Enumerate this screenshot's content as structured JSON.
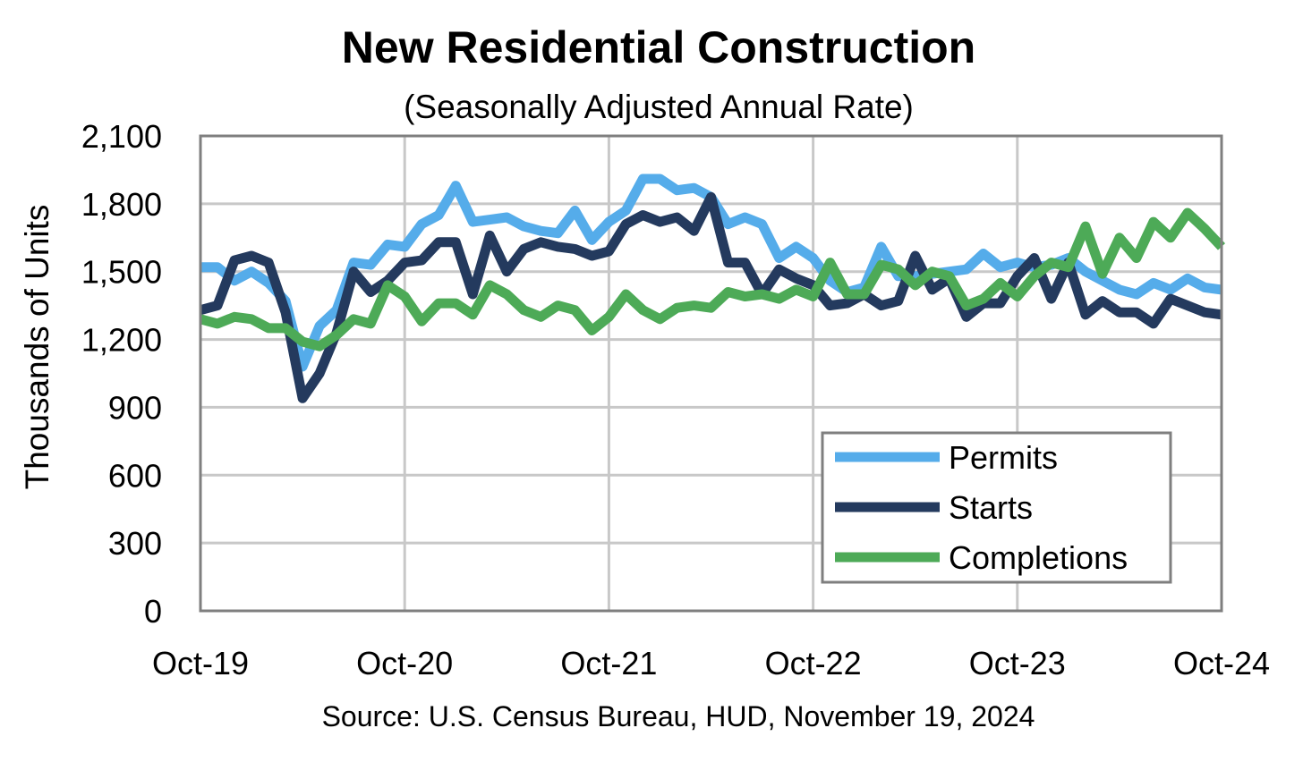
{
  "chart_data": {
    "type": "line",
    "title": "New Residential Construction",
    "subtitle": "(Seasonally Adjusted Annual Rate)",
    "ylabel": "Thousands of Units",
    "source": "Source:  U.S. Census Bureau, HUD, November 19, 2024",
    "ylim": [
      0,
      2100
    ],
    "y_ticks": [
      0,
      300,
      600,
      900,
      1200,
      1500,
      1800,
      2100
    ],
    "y_tick_labels": [
      "0",
      "300",
      "600",
      "900",
      "1,200",
      "1,500",
      "1,800",
      "2,100"
    ],
    "x_tick_labels": [
      "Oct-19",
      "Oct-20",
      "Oct-21",
      "Oct-22",
      "Oct-23",
      "Oct-24"
    ],
    "x_tick_months": [
      0,
      12,
      24,
      36,
      48,
      60
    ],
    "x_months": 60,
    "grid": true,
    "legend_position": "bottom-right",
    "series": [
      {
        "name": "Permits",
        "color": "#55acea",
        "values": [
          1520,
          1520,
          1460,
          1500,
          1450,
          1370,
          1080,
          1260,
          1330,
          1540,
          1530,
          1620,
          1610,
          1710,
          1750,
          1880,
          1720,
          1730,
          1740,
          1700,
          1680,
          1670,
          1770,
          1640,
          1720,
          1770,
          1910,
          1910,
          1860,
          1870,
          1830,
          1710,
          1740,
          1710,
          1560,
          1610,
          1560,
          1460,
          1410,
          1430,
          1610,
          1480,
          1480,
          1490,
          1500,
          1510,
          1580,
          1520,
          1540,
          1520,
          1530,
          1560,
          1500,
          1460,
          1420,
          1400,
          1450,
          1420,
          1470,
          1430,
          1420
        ]
      },
      {
        "name": "Starts",
        "color": "#243a5e",
        "values": [
          1330,
          1350,
          1550,
          1570,
          1540,
          1320,
          940,
          1050,
          1230,
          1500,
          1410,
          1460,
          1540,
          1550,
          1630,
          1630,
          1400,
          1660,
          1500,
          1600,
          1630,
          1610,
          1600,
          1570,
          1590,
          1710,
          1750,
          1720,
          1740,
          1680,
          1830,
          1540,
          1540,
          1400,
          1510,
          1470,
          1440,
          1350,
          1360,
          1400,
          1350,
          1370,
          1570,
          1420,
          1470,
          1300,
          1360,
          1360,
          1480,
          1560,
          1380,
          1540,
          1310,
          1370,
          1320,
          1320,
          1270,
          1380,
          1350,
          1320,
          1310
        ]
      },
      {
        "name": "Completions",
        "color": "#4daa57",
        "values": [
          1290,
          1270,
          1300,
          1290,
          1250,
          1250,
          1190,
          1170,
          1220,
          1290,
          1270,
          1440,
          1390,
          1280,
          1360,
          1360,
          1310,
          1440,
          1400,
          1330,
          1300,
          1350,
          1330,
          1240,
          1300,
          1400,
          1330,
          1290,
          1340,
          1350,
          1340,
          1410,
          1390,
          1400,
          1380,
          1420,
          1390,
          1540,
          1400,
          1400,
          1530,
          1510,
          1440,
          1500,
          1480,
          1350,
          1380,
          1450,
          1390,
          1480,
          1540,
          1520,
          1700,
          1490,
          1650,
          1560,
          1720,
          1650,
          1760,
          1690,
          1610
        ]
      }
    ]
  }
}
